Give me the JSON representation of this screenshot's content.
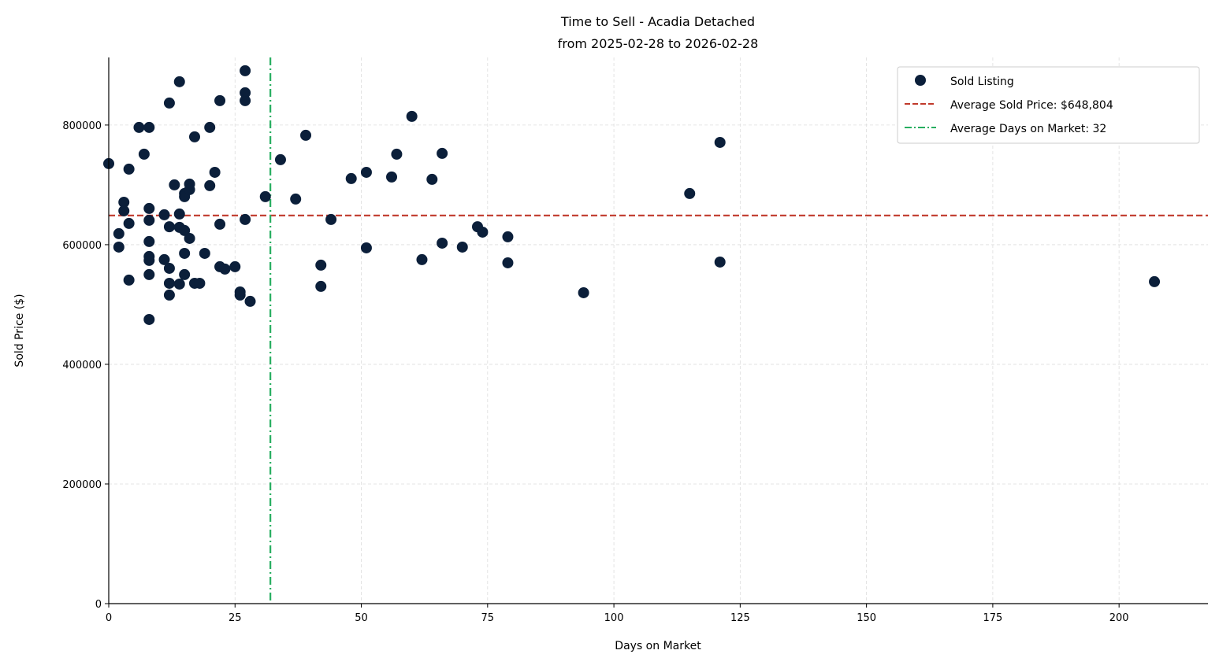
{
  "chart_data": {
    "type": "scatter",
    "title": "Time to Sell - Acadia Detached",
    "subtitle": "from 2025-02-28 to 2026-02-28",
    "xlabel": "Days on Market",
    "ylabel": "Sold Price ($)",
    "xlim": [
      0,
      217.6
    ],
    "ylim": [
      0,
      913000
    ],
    "xticks": [
      0,
      25,
      50,
      75,
      100,
      125,
      150,
      175,
      200
    ],
    "yticks": [
      0,
      200000,
      400000,
      600000,
      800000
    ],
    "grid": true,
    "legend_position": "top-right",
    "colors": {
      "points": "#0b1f3a",
      "avg_price": "#c0392b",
      "avg_days": "#27ae60"
    },
    "series": [
      {
        "name": "Sold Listing",
        "points": [
          [
            0,
            735500
          ],
          [
            2,
            618400
          ],
          [
            2,
            596000
          ],
          [
            3,
            671000
          ],
          [
            3,
            656600
          ],
          [
            4,
            726300
          ],
          [
            4,
            635500
          ],
          [
            4,
            540800
          ],
          [
            6,
            796000
          ],
          [
            7,
            751300
          ],
          [
            8,
            796000
          ],
          [
            8,
            660500
          ],
          [
            8,
            640800
          ],
          [
            8,
            605300
          ],
          [
            8,
            580300
          ],
          [
            8,
            573700
          ],
          [
            8,
            550000
          ],
          [
            8,
            475000
          ],
          [
            11,
            650000
          ],
          [
            11,
            575000
          ],
          [
            12,
            836800
          ],
          [
            12,
            630000
          ],
          [
            12,
            560500
          ],
          [
            12,
            535500
          ],
          [
            12,
            515800
          ],
          [
            13,
            700000
          ],
          [
            14,
            872400
          ],
          [
            14,
            651300
          ],
          [
            14,
            629000
          ],
          [
            14,
            534200
          ],
          [
            15,
            685500
          ],
          [
            15,
            680300
          ],
          [
            15,
            623700
          ],
          [
            15,
            585500
          ],
          [
            15,
            550000
          ],
          [
            16,
            701300
          ],
          [
            16,
            692100
          ],
          [
            16,
            610500
          ],
          [
            17,
            780300
          ],
          [
            17,
            535500
          ],
          [
            18,
            535500
          ],
          [
            19,
            585500
          ],
          [
            20,
            796000
          ],
          [
            20,
            698700
          ],
          [
            21,
            721000
          ],
          [
            22,
            840800
          ],
          [
            22,
            634200
          ],
          [
            22,
            563200
          ],
          [
            23,
            559200
          ],
          [
            25,
            563200
          ],
          [
            26,
            521000
          ],
          [
            26,
            515800
          ],
          [
            27,
            890800
          ],
          [
            27,
            853900
          ],
          [
            27,
            840800
          ],
          [
            27,
            642100
          ],
          [
            28,
            505300
          ],
          [
            31,
            680300
          ],
          [
            34,
            742100
          ],
          [
            37,
            676300
          ],
          [
            39,
            782900
          ],
          [
            42,
            565800
          ],
          [
            42,
            530300
          ],
          [
            44,
            642100
          ],
          [
            48,
            710500
          ],
          [
            51,
            721000
          ],
          [
            51,
            594700
          ],
          [
            56,
            713200
          ],
          [
            57,
            751300
          ],
          [
            60,
            814500
          ],
          [
            62,
            575000
          ],
          [
            64,
            709200
          ],
          [
            66,
            752600
          ],
          [
            66,
            602600
          ],
          [
            70,
            596000
          ],
          [
            73,
            630000
          ],
          [
            74,
            621000
          ],
          [
            79,
            613200
          ],
          [
            79,
            569700
          ],
          [
            94,
            519700
          ],
          [
            115,
            685500
          ],
          [
            121,
            771000
          ],
          [
            121,
            571000
          ],
          [
            207,
            538200
          ]
        ]
      }
    ],
    "reference_lines": [
      {
        "name": "Average Sold Price: $648,804",
        "axis": "y",
        "value": 648804,
        "style": "dashed"
      },
      {
        "name": "Average Days on Market: 32",
        "axis": "x",
        "value": 32,
        "style": "dashdot"
      }
    ]
  }
}
